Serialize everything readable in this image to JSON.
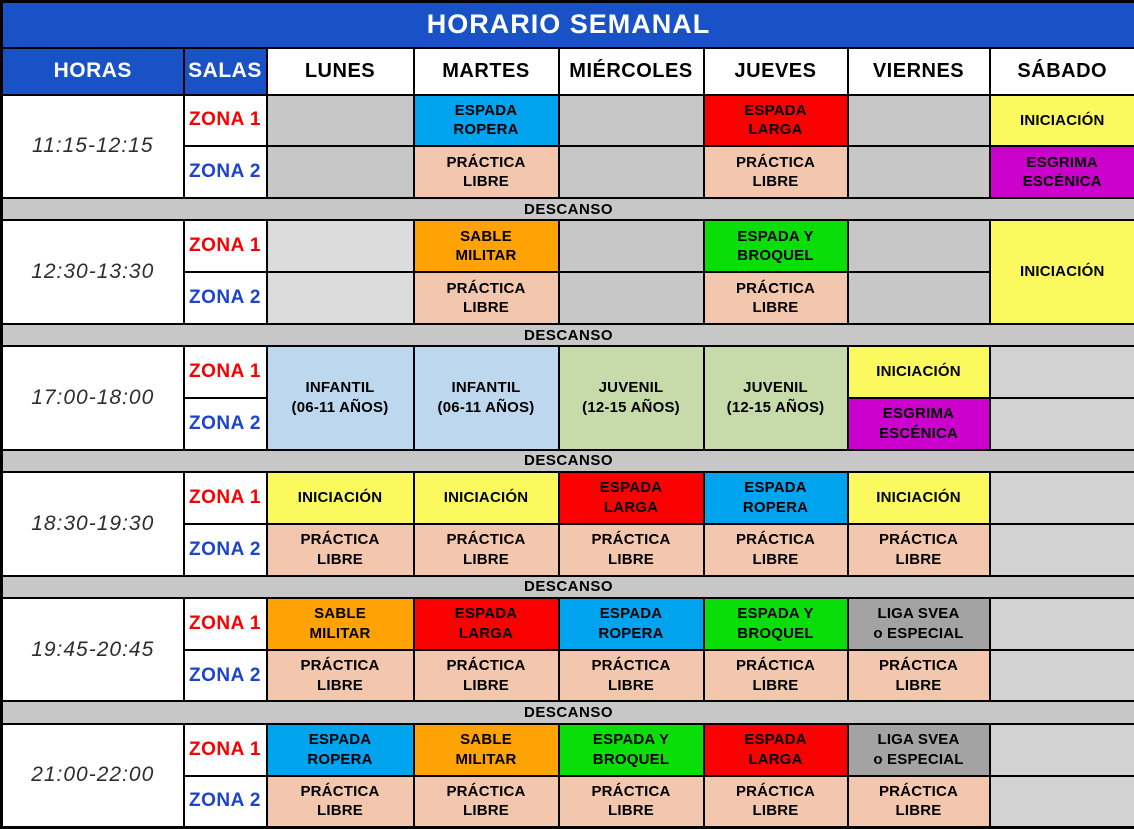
{
  "title": "HORARIO SEMANAL",
  "columns": {
    "hours": "HORAS",
    "rooms": "SALAS",
    "days": [
      "LUNES",
      "MARTES",
      "MIÉRCOLES",
      "JUEVES",
      "VIERNES",
      "SÁBADO"
    ]
  },
  "zone_labels": {
    "z1": "ZONA 1",
    "z2": "ZONA 2"
  },
  "descanso_label": "DESCANSO",
  "colors": {
    "header_blue": "#1852C6",
    "zona1_text": "#F80000",
    "zona2_text": "#1E44CE",
    "descanso_bg": "#C7C7C7",
    "cell_palette": {
      "empty": "#C7C7C7",
      "empty_light": "#DCDCDC",
      "empty_sabado": "#D2D2D2",
      "ropera": "#00A3EE",
      "larga": "#FA0000",
      "iniciacion": "#FAFA5E",
      "escenica": "#CC00CC",
      "sable": "#FFA203",
      "broquel": "#09DE09",
      "practica": "#F3C7AD",
      "infantil": "#BDD7EE",
      "juvenil": "#C6DAAA",
      "liga": "#A3A3A3"
    }
  },
  "blocks": [
    {
      "time": "11:15-12:15",
      "z1": [
        {
          "lines": [],
          "color": "empty"
        },
        {
          "lines": [
            "ESPADA",
            "ROPERA"
          ],
          "color": "ropera"
        },
        {
          "lines": [],
          "color": "empty"
        },
        {
          "lines": [
            "ESPADA",
            "LARGA"
          ],
          "color": "larga"
        },
        {
          "lines": [],
          "color": "empty"
        },
        {
          "lines": [
            "INICIACIÓN"
          ],
          "color": "iniciacion"
        }
      ],
      "z2": [
        {
          "lines": [],
          "color": "empty"
        },
        {
          "lines": [
            "PRÁCTICA",
            "LIBRE"
          ],
          "color": "practica"
        },
        {
          "lines": [],
          "color": "empty"
        },
        {
          "lines": [
            "PRÁCTICA",
            "LIBRE"
          ],
          "color": "practica"
        },
        {
          "lines": [],
          "color": "empty"
        },
        {
          "lines": [
            "ESGRIMA",
            "ESCÉNICA"
          ],
          "color": "escenica"
        }
      ]
    },
    {
      "time": "12:30-13:30",
      "z1": [
        {
          "lines": [],
          "color": "empty_light"
        },
        {
          "lines": [
            "SABLE",
            "MILITAR"
          ],
          "color": "sable"
        },
        {
          "lines": [],
          "color": "empty"
        },
        {
          "lines": [
            "ESPADA Y",
            "BROQUEL"
          ],
          "color": "broquel"
        },
        {
          "lines": [],
          "color": "empty"
        },
        {
          "lines": [
            "INICIACIÓN"
          ],
          "color": "iniciacion",
          "span": 2
        }
      ],
      "z2": [
        {
          "lines": [],
          "color": "empty_light"
        },
        {
          "lines": [
            "PRÁCTICA",
            "LIBRE"
          ],
          "color": "practica"
        },
        {
          "lines": [],
          "color": "empty"
        },
        {
          "lines": [
            "PRÁCTICA",
            "LIBRE"
          ],
          "color": "practica"
        },
        {
          "lines": [],
          "color": "empty"
        },
        {
          "covered": true
        }
      ]
    },
    {
      "time": "17:00-18:00",
      "z1": [
        {
          "lines": [
            "INFANTIL",
            "(06-11 AÑOS)"
          ],
          "color": "infantil",
          "span": 2
        },
        {
          "lines": [
            "INFANTIL",
            "(06-11 AÑOS)"
          ],
          "color": "infantil",
          "span": 2
        },
        {
          "lines": [
            "JUVENIL",
            "(12-15 AÑOS)"
          ],
          "color": "juvenil",
          "span": 2
        },
        {
          "lines": [
            "JUVENIL",
            "(12-15 AÑOS)"
          ],
          "color": "juvenil",
          "span": 2
        },
        {
          "lines": [
            "INICIACIÓN"
          ],
          "color": "iniciacion"
        },
        {
          "lines": [],
          "color": "empty_sabado"
        }
      ],
      "z2": [
        {
          "covered": true
        },
        {
          "covered": true
        },
        {
          "covered": true
        },
        {
          "covered": true
        },
        {
          "lines": [
            "ESGRIMA",
            "ESCÉNICA"
          ],
          "color": "escenica"
        },
        {
          "lines": [],
          "color": "empty_sabado"
        }
      ]
    },
    {
      "time": "18:30-19:30",
      "z1": [
        {
          "lines": [
            "INICIACIÓN"
          ],
          "color": "iniciacion"
        },
        {
          "lines": [
            "INICIACIÓN"
          ],
          "color": "iniciacion"
        },
        {
          "lines": [
            "ESPADA",
            "LARGA"
          ],
          "color": "larga"
        },
        {
          "lines": [
            "ESPADA",
            "ROPERA"
          ],
          "color": "ropera"
        },
        {
          "lines": [
            "INICIACIÓN"
          ],
          "color": "iniciacion"
        },
        {
          "lines": [],
          "color": "empty_sabado"
        }
      ],
      "z2": [
        {
          "lines": [
            "PRÁCTICA",
            "LIBRE"
          ],
          "color": "practica"
        },
        {
          "lines": [
            "PRÁCTICA",
            "LIBRE"
          ],
          "color": "practica"
        },
        {
          "lines": [
            "PRÁCTICA",
            "LIBRE"
          ],
          "color": "practica"
        },
        {
          "lines": [
            "PRÁCTICA",
            "LIBRE"
          ],
          "color": "practica"
        },
        {
          "lines": [
            "PRÁCTICA",
            "LIBRE"
          ],
          "color": "practica"
        },
        {
          "lines": [],
          "color": "empty_sabado"
        }
      ]
    },
    {
      "time": "19:45-20:45",
      "z1": [
        {
          "lines": [
            "SABLE",
            "MILITAR"
          ],
          "color": "sable"
        },
        {
          "lines": [
            "ESPADA",
            "LARGA"
          ],
          "color": "larga"
        },
        {
          "lines": [
            "ESPADA",
            "ROPERA"
          ],
          "color": "ropera"
        },
        {
          "lines": [
            "ESPADA Y",
            "BROQUEL"
          ],
          "color": "broquel"
        },
        {
          "lines": [
            "LIGA SVEA",
            "o ESPECIAL"
          ],
          "color": "liga"
        },
        {
          "lines": [],
          "color": "empty_sabado"
        }
      ],
      "z2": [
        {
          "lines": [
            "PRÁCTICA",
            "LIBRE"
          ],
          "color": "practica"
        },
        {
          "lines": [
            "PRÁCTICA",
            "LIBRE"
          ],
          "color": "practica"
        },
        {
          "lines": [
            "PRÁCTICA",
            "LIBRE"
          ],
          "color": "practica"
        },
        {
          "lines": [
            "PRÁCTICA",
            "LIBRE"
          ],
          "color": "practica"
        },
        {
          "lines": [
            "PRÁCTICA",
            "LIBRE"
          ],
          "color": "practica"
        },
        {
          "lines": [],
          "color": "empty_sabado"
        }
      ]
    },
    {
      "time": "21:00-22:00",
      "z1": [
        {
          "lines": [
            "ESPADA",
            "ROPERA"
          ],
          "color": "ropera"
        },
        {
          "lines": [
            "SABLE",
            "MILITAR"
          ],
          "color": "sable"
        },
        {
          "lines": [
            "ESPADA Y",
            "BROQUEL"
          ],
          "color": "broquel"
        },
        {
          "lines": [
            "ESPADA",
            "LARGA"
          ],
          "color": "larga"
        },
        {
          "lines": [
            "LIGA SVEA",
            "o ESPECIAL"
          ],
          "color": "liga"
        },
        {
          "lines": [],
          "color": "empty_sabado"
        }
      ],
      "z2": [
        {
          "lines": [
            "PRÁCTICA",
            "LIBRE"
          ],
          "color": "practica"
        },
        {
          "lines": [
            "PRÁCTICA",
            "LIBRE"
          ],
          "color": "practica"
        },
        {
          "lines": [
            "PRÁCTICA",
            "LIBRE"
          ],
          "color": "practica"
        },
        {
          "lines": [
            "PRÁCTICA",
            "LIBRE"
          ],
          "color": "practica"
        },
        {
          "lines": [
            "PRÁCTICA",
            "LIBRE"
          ],
          "color": "practica"
        },
        {
          "lines": [],
          "color": "empty_sabado"
        }
      ]
    }
  ]
}
